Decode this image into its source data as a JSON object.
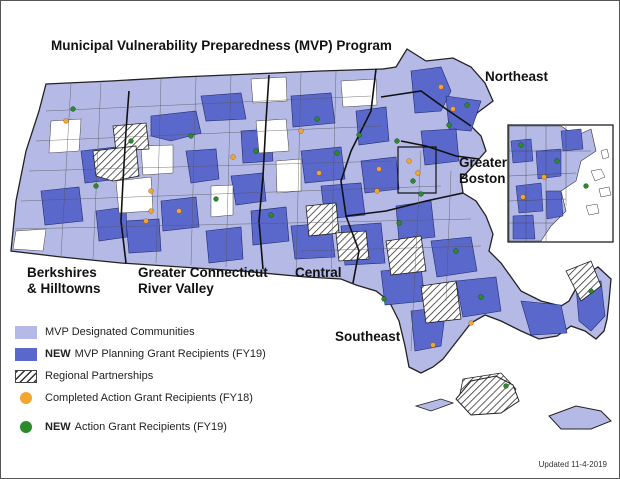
{
  "title": "Municipal Vulnerability Preparedness (MVP) Program",
  "regions": {
    "northeast": "Northeast",
    "greater_boston_line1": "Greater",
    "greater_boston_line2": "Boston",
    "berkshires_line1": "Berkshires",
    "berkshires_line2": "& Hilltowns",
    "connecticut_line1": "Greater Connecticut",
    "connecticut_line2": "River Valley",
    "central": "Central",
    "southeast": "Southeast"
  },
  "legend": {
    "designated": "MVP Designated Communities",
    "planning_new": "NEW",
    "planning": "MVP Planning Grant Recipients (FY19)",
    "partnerships": "Regional Partnerships",
    "completed": "Completed Action Grant Recipients (FY18)",
    "action_new": "NEW",
    "action": "Action Grant Recipients (FY19)"
  },
  "updated": "Updated 11-4-2019",
  "colors": {
    "designated": "#b4b9e6",
    "planning_fy19": "#5a68cc",
    "completed_dot": "#f2a630",
    "action_dot": "#2b8a2a"
  }
}
